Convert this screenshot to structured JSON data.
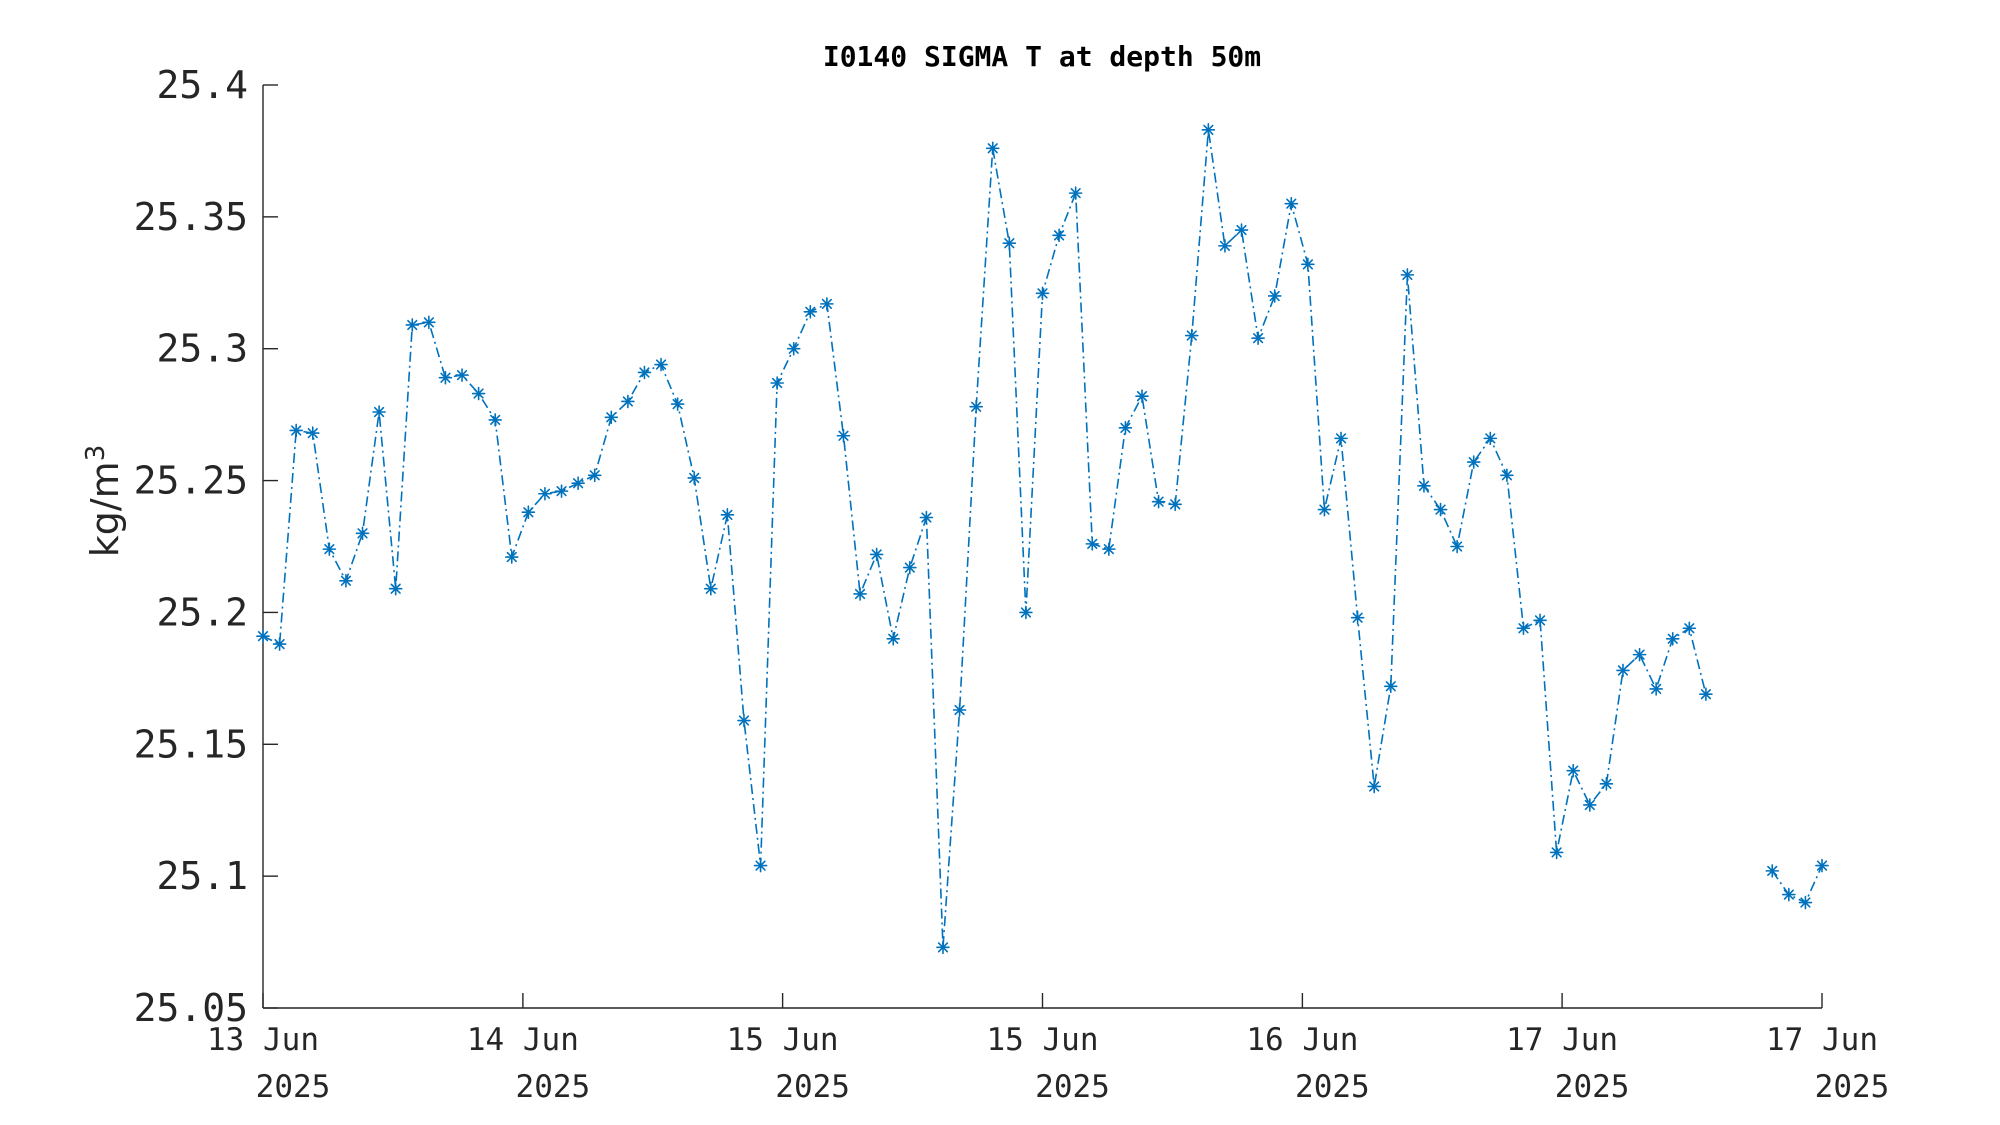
{
  "chart_data": {
    "type": "line",
    "title": "I0140 SIGMA T at depth 50m",
    "ylabel": "kg/m",
    "ylabel_sup": "3",
    "xlabel": "",
    "ylim": [
      25.05,
      25.4
    ],
    "yticks": [
      25.05,
      25.1,
      25.15,
      25.2,
      25.25,
      25.3,
      25.35,
      25.4
    ],
    "ytick_labels": [
      "25.05",
      "25.1",
      "25.15",
      "25.2",
      "25.25",
      "25.3",
      "25.35",
      "25.4"
    ],
    "xlim": [
      0,
      94
    ],
    "xticks": [
      0,
      15.67,
      31.33,
      47,
      62.67,
      78.33,
      94
    ],
    "xtick_labels": [
      [
        "13 Jun",
        "2025"
      ],
      [
        "14 Jun",
        "2025"
      ],
      [
        "15 Jun",
        "2025"
      ],
      [
        "15 Jun",
        "2025"
      ],
      [
        "16 Jun",
        "2025"
      ],
      [
        "17 Jun",
        "2025"
      ],
      [
        "17 Jun",
        "2025"
      ]
    ],
    "x_unit": "sample index (hourly)",
    "series": [
      {
        "color": "#0072BD",
        "linestyle": "dash-dot",
        "marker": "asterisk",
        "x": [
          0,
          1,
          2,
          3,
          4,
          5,
          6,
          7,
          8,
          9,
          10,
          11,
          12,
          13,
          14,
          15,
          16,
          17,
          18,
          19,
          20,
          21,
          22,
          23,
          24,
          25,
          26,
          27,
          28,
          29,
          30,
          31,
          32,
          33,
          34,
          35,
          36,
          37,
          38,
          39,
          40,
          41,
          42,
          43,
          44,
          45,
          46,
          47,
          48,
          49,
          50,
          51,
          52,
          53,
          54,
          55,
          56,
          57,
          58,
          59,
          60,
          61,
          62,
          63,
          64,
          65,
          66,
          67,
          68,
          69,
          70,
          71,
          72,
          73,
          74,
          75,
          76,
          77,
          78,
          79,
          80,
          81,
          82,
          83,
          84,
          85,
          86,
          87,
          91,
          92,
          93,
          94
        ],
        "values": [
          25.191,
          25.188,
          25.269,
          25.268,
          25.224,
          25.212,
          25.23,
          25.276,
          25.209,
          25.309,
          25.31,
          25.289,
          25.29,
          25.283,
          25.273,
          25.221,
          25.238,
          25.245,
          25.246,
          25.249,
          25.252,
          25.274,
          25.28,
          25.291,
          25.294,
          25.279,
          25.251,
          25.209,
          25.237,
          25.159,
          25.104,
          25.287,
          25.3,
          25.314,
          25.317,
          25.267,
          25.207,
          25.222,
          25.19,
          25.217,
          25.236,
          25.073,
          25.163,
          25.278,
          25.376,
          25.34,
          25.2,
          25.321,
          25.343,
          25.359,
          25.226,
          25.224,
          25.27,
          25.282,
          25.242,
          25.241,
          25.305,
          25.383,
          25.339,
          25.345,
          25.304,
          25.32,
          25.355,
          25.332,
          25.239,
          25.266,
          25.198,
          25.134,
          25.172,
          25.328,
          25.248,
          25.239,
          25.225,
          25.257,
          25.266,
          25.252,
          25.194,
          25.197,
          25.109,
          25.14,
          25.127,
          25.135,
          25.178,
          25.184,
          25.171,
          25.19,
          25.194,
          25.169,
          25.102,
          25.093,
          25.09,
          25.104
        ],
        "segments": [
          [
            0,
            87
          ],
          [
            91,
            94
          ]
        ]
      }
    ]
  }
}
